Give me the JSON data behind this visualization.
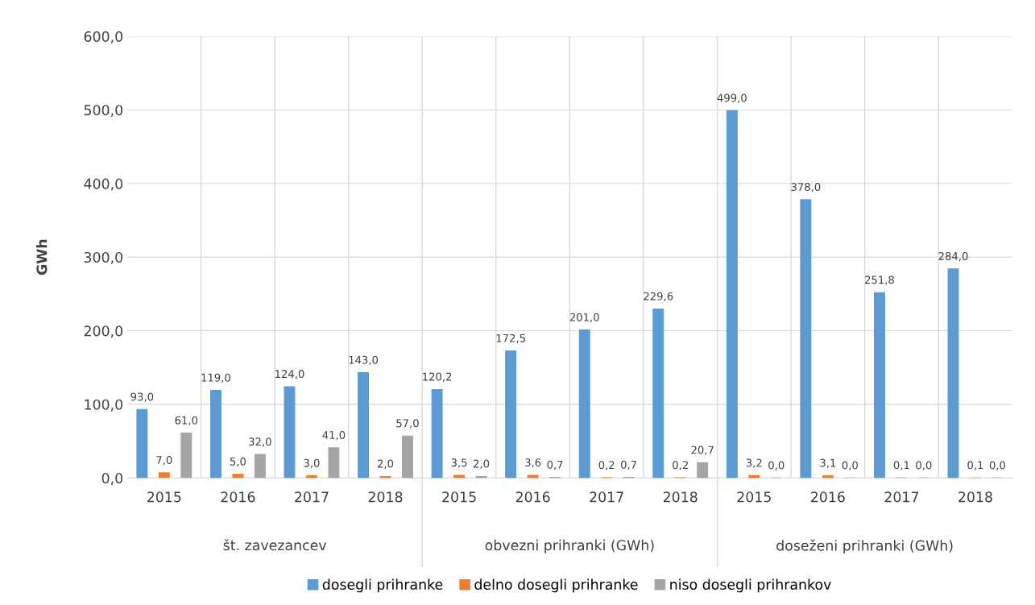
{
  "chart_data": {
    "type": "bar",
    "ylabel": "GWh",
    "categories": [
      "2015",
      "2016",
      "2017",
      "2018",
      "2015",
      "2016",
      "2017",
      "2018",
      "2015",
      "2016",
      "2017",
      "2018"
    ],
    "annotations": [
      "št. zavezancev",
      "obvezni prihranki (GWh)",
      "doseženi prihranki (GWh)"
    ],
    "series": [
      {
        "name": "dosegli prihranke",
        "color": "#5b9bd5",
        "values": [
          93.0,
          119.0,
          124.0,
          143.0,
          120.2,
          172.5,
          201.0,
          229.6,
          499.0,
          378.0,
          251.8,
          284.0
        ],
        "value_labels": [
          "93,0",
          "119,0",
          "124,0",
          "143,0",
          "120,2",
          "172,5",
          "201,0",
          "229,6",
          "499,0",
          "378,0",
          "251,8",
          "284,0"
        ]
      },
      {
        "name": "delno dosegli prihranke",
        "color": "#ed7d31",
        "values": [
          7.0,
          5.0,
          3.0,
          2.0,
          3.5,
          3.6,
          0.2,
          0.2,
          3.2,
          3.1,
          0.1,
          0.1
        ],
        "value_labels": [
          "7,0",
          "5,0",
          "3,0",
          "2,0",
          "3,5",
          "3,6",
          "0,2",
          "0,2",
          "3,2",
          "3,1",
          "0,1",
          "0,1"
        ]
      },
      {
        "name": "niso dosegli prihrankov",
        "color": "#a5a5a5",
        "values": [
          61.0,
          32.0,
          41.0,
          57.0,
          2.0,
          0.7,
          0.7,
          20.7,
          0.0,
          0.0,
          0.0,
          0.0
        ],
        "value_labels": [
          "61,0",
          "32,0",
          "41,0",
          "57,0",
          "2,0",
          "0,7",
          "0,7",
          "20,7",
          "0,0",
          "0,0",
          "0,0",
          "0,0"
        ]
      }
    ],
    "ylim": [
      0,
      600
    ],
    "yticks": [
      {
        "value": 0,
        "label": "0,0"
      },
      {
        "value": 100,
        "label": "100,0"
      },
      {
        "value": 200,
        "label": "200,0"
      },
      {
        "value": 300,
        "label": "300,0"
      },
      {
        "value": 400,
        "label": "400,0"
      },
      {
        "value": 500,
        "label": "500,0"
      },
      {
        "value": 600,
        "label": "600,0"
      }
    ],
    "grid": "y",
    "legend": "bottom"
  }
}
